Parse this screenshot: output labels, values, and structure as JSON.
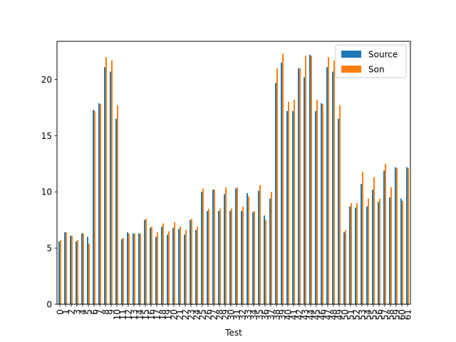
{
  "chart_data": {
    "type": "bar",
    "xlabel": "Test",
    "ylabel": "",
    "ylim": [
      0,
      23.4
    ],
    "yticks": [
      0,
      5,
      10,
      15,
      20
    ],
    "grid": false,
    "legend_position": "top-right",
    "categories": [
      "0",
      "1",
      "2",
      "3",
      "4",
      "5",
      "6",
      "7",
      "8",
      "9",
      "10",
      "11",
      "12",
      "13",
      "14",
      "15",
      "16",
      "17",
      "18",
      "19",
      "20",
      "21",
      "22",
      "23",
      "24",
      "25",
      "26",
      "27",
      "28",
      "29",
      "30",
      "31",
      "32",
      "33",
      "34",
      "35",
      "36",
      "37",
      "38",
      "39",
      "40",
      "41",
      "42",
      "43",
      "44",
      "45",
      "46",
      "47",
      "48",
      "49",
      "50",
      "51",
      "52",
      "53",
      "54",
      "55",
      "56",
      "57",
      "58",
      "59",
      "60",
      "61"
    ],
    "series": [
      {
        "name": "Source",
        "color": "#1f77b4",
        "values": [
          5.6,
          6.4,
          6.1,
          5.6,
          6.3,
          6.0,
          17.3,
          17.9,
          21.1,
          20.7,
          16.5,
          5.8,
          6.4,
          6.3,
          6.3,
          7.5,
          6.8,
          6.0,
          6.9,
          6.2,
          6.8,
          6.7,
          6.2,
          7.5,
          6.6,
          10.0,
          8.3,
          10.2,
          8.3,
          9.8,
          8.3,
          10.3,
          8.3,
          9.9,
          8.2,
          10.1,
          7.9,
          9.4,
          19.7,
          21.5,
          17.2,
          17.2,
          21.0,
          20.2,
          22.2,
          17.2,
          17.9,
          21.1,
          20.7,
          16.5,
          6.4,
          8.7,
          8.6,
          10.7,
          8.7,
          10.2,
          9.1,
          11.9,
          9.5,
          12.2,
          9.4,
          12.2
        ]
      },
      {
        "name": "Son",
        "color": "#ff7f0e",
        "values": [
          5.7,
          6.4,
          6.1,
          5.7,
          6.3,
          5.4,
          17.2,
          17.8,
          22.0,
          21.7,
          17.7,
          5.9,
          6.3,
          6.3,
          6.3,
          7.6,
          6.9,
          6.4,
          7.2,
          6.5,
          7.3,
          6.9,
          6.6,
          7.6,
          6.9,
          10.3,
          8.5,
          10.2,
          8.5,
          10.4,
          8.5,
          10.4,
          8.7,
          9.6,
          8.3,
          10.6,
          7.5,
          10.0,
          21.0,
          22.3,
          18.0,
          18.2,
          21.0,
          22.1,
          22.1,
          18.2,
          17.8,
          22.0,
          21.7,
          17.7,
          6.6,
          9.0,
          9.0,
          11.8,
          9.4,
          11.3,
          9.4,
          12.5,
          10.4,
          12.1,
          9.2,
          12.1
        ]
      }
    ]
  }
}
